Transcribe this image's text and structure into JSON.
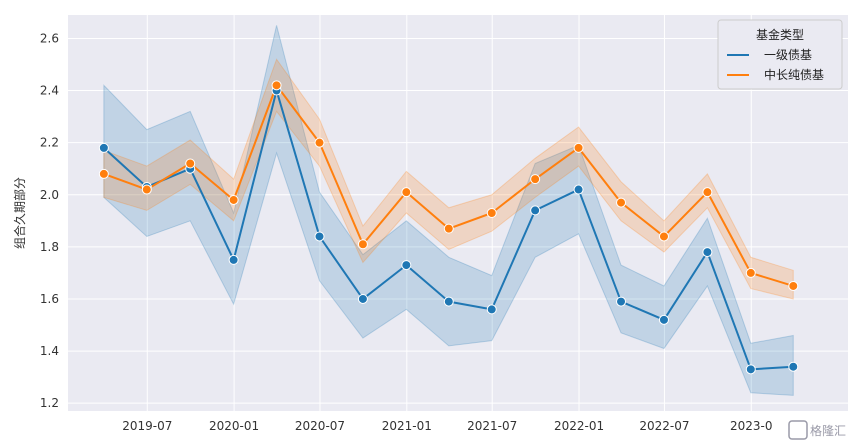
{
  "chart_data": {
    "type": "line",
    "title": "",
    "xlabel": "",
    "ylabel": "组合久期部分",
    "ylim": [
      1.17,
      2.69
    ],
    "xlim": [
      "2019-01-14",
      "2023-07-25"
    ],
    "grid": true,
    "legend_title": "基金类型",
    "legend_position": "top-right",
    "x_ticks": [
      {
        "date": "2019-07-01",
        "label": "2019-07"
      },
      {
        "date": "2020-01-01",
        "label": "2020-01"
      },
      {
        "date": "2020-07-01",
        "label": "2020-07"
      },
      {
        "date": "2021-01-01",
        "label": "2021-01"
      },
      {
        "date": "2021-07-01",
        "label": "2021-07"
      },
      {
        "date": "2022-01-01",
        "label": "2022-01"
      },
      {
        "date": "2022-07-01",
        "label": "2022-07"
      },
      {
        "date": "2023-01-01",
        "label": "2023-0"
      }
    ],
    "y_ticks": [
      1.2,
      1.4,
      1.6,
      1.8,
      2.0,
      2.2,
      2.4,
      2.6
    ],
    "x": [
      "2019-03-31",
      "2019-06-30",
      "2019-09-30",
      "2019-12-31",
      "2020-03-31",
      "2020-06-30",
      "2020-09-30",
      "2020-12-31",
      "2021-03-31",
      "2021-06-30",
      "2021-09-30",
      "2021-12-31",
      "2022-03-31",
      "2022-06-30",
      "2022-09-30",
      "2022-12-31",
      "2023-03-31"
    ],
    "series": [
      {
        "name": "一级债基",
        "color": "#1f77b4",
        "values": [
          2.18,
          2.03,
          2.1,
          1.75,
          2.4,
          1.84,
          1.6,
          1.73,
          1.59,
          1.56,
          1.94,
          2.02,
          1.59,
          1.52,
          1.78,
          1.33,
          1.34
        ],
        "ci_lower": [
          1.99,
          1.84,
          1.9,
          1.58,
          2.16,
          1.67,
          1.45,
          1.56,
          1.42,
          1.44,
          1.76,
          1.85,
          1.47,
          1.41,
          1.65,
          1.24,
          1.23
        ],
        "ci_upper": [
          2.42,
          2.25,
          2.32,
          1.93,
          2.65,
          2.01,
          1.77,
          1.9,
          1.76,
          1.69,
          2.12,
          2.19,
          1.73,
          1.65,
          1.91,
          1.43,
          1.46
        ]
      },
      {
        "name": "中长纯债基",
        "color": "#ff7f0e",
        "values": [
          2.08,
          2.02,
          2.12,
          1.98,
          2.42,
          2.2,
          1.81,
          2.01,
          1.87,
          1.93,
          2.06,
          2.18,
          1.97,
          1.84,
          2.01,
          1.7,
          1.65
        ],
        "ci_lower": [
          1.99,
          1.94,
          2.04,
          1.9,
          2.32,
          2.11,
          1.74,
          1.93,
          1.79,
          1.86,
          1.99,
          2.11,
          1.9,
          1.78,
          1.95,
          1.64,
          1.6
        ],
        "ci_upper": [
          2.17,
          2.11,
          2.21,
          2.06,
          2.52,
          2.29,
          1.88,
          2.09,
          1.95,
          2.0,
          2.14,
          2.26,
          2.05,
          1.9,
          2.08,
          1.76,
          1.71
        ]
      }
    ]
  },
  "watermark": {
    "icon": "gelonghui-logo-icon",
    "text": "格隆汇"
  }
}
